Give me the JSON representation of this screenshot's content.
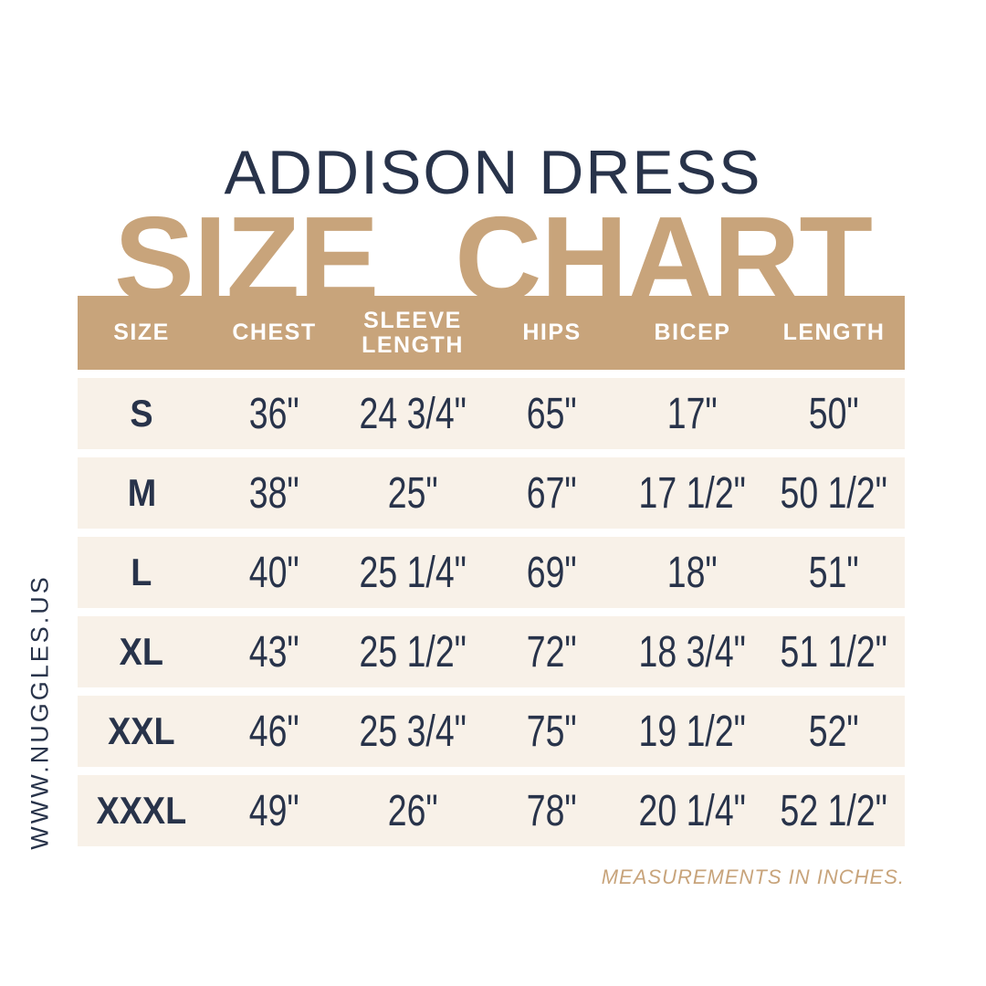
{
  "colors": {
    "tan": "#C8A47B",
    "cream": "#F8F1E8",
    "navy": "#28334A",
    "white": "#FFFFFF"
  },
  "branding": {
    "website": "WWW.NUGGLES.US"
  },
  "chart_data": {
    "type": "table",
    "title": "ADDISON DRESS",
    "subtitle": "SIZE CHART",
    "units": "inches",
    "footnote": "MEASUREMENTS IN INCHES.",
    "columns": [
      "SIZE",
      "CHEST",
      "SLEEVE LENGTH",
      "HIPS",
      "BICEP",
      "LENGTH"
    ],
    "rows": [
      [
        "S",
        "36\"",
        "24 3/4\"",
        "65\"",
        "17\"",
        "50\""
      ],
      [
        "M",
        "38\"",
        "25\"",
        "67\"",
        "17 1/2\"",
        "50 1/2\""
      ],
      [
        "L",
        "40\"",
        "25 1/4\"",
        "69\"",
        "18\"",
        "51\""
      ],
      [
        "XL",
        "43\"",
        "25 1/2\"",
        "72\"",
        "18 3/4\"",
        "51 1/2\""
      ],
      [
        "XXL",
        "46\"",
        "25 3/4\"",
        "75\"",
        "19 1/2\"",
        "52\""
      ],
      [
        "XXXL",
        "49\"",
        "26\"",
        "78\"",
        "20 1/4\"",
        "52 1/2\""
      ]
    ]
  }
}
